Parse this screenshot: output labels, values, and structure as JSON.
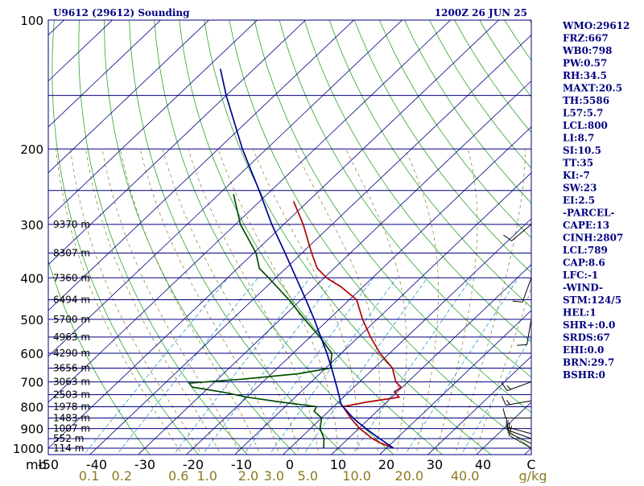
{
  "chart_data": {
    "type": "line",
    "title_left": "U9612 (29612) Sounding",
    "title_right": "1200Z 26 JUN 25",
    "y_unit_label": "mb",
    "mixing_unit_label": "g/kg",
    "pressure_ticks": [
      100,
      200,
      300,
      400,
      500,
      600,
      700,
      800,
      900,
      1000
    ],
    "pressure_lines": [
      150,
      200,
      250,
      300,
      350,
      400,
      450,
      500,
      550,
      600,
      650,
      700,
      750,
      800,
      850,
      900,
      950,
      1000
    ],
    "ylim": [
      1000,
      100
    ],
    "temp_ticks": [
      -50,
      -40,
      -30,
      -20,
      -10,
      0,
      10,
      20,
      30,
      40
    ],
    "temp_tick_labels": [
      "-50",
      "-40",
      "-30",
      "-20",
      "-10",
      "0",
      "10",
      "20",
      "30",
      "40"
    ],
    "last_tick_label": "C",
    "xlim": [
      -50,
      50
    ],
    "mixing_ratio_labels": [
      {
        "w": 0.1,
        "label": "0.1"
      },
      {
        "w": 0.2,
        "label": "0.2"
      },
      {
        "w": 0.6,
        "label": "0.6"
      },
      {
        "w": 1.0,
        "label": "1.0"
      },
      {
        "w": 2.0,
        "label": "2.0"
      },
      {
        "w": 3.0,
        "label": "3.0"
      },
      {
        "w": 5.0,
        "label": "5.0"
      },
      {
        "w": 10.0,
        "label": "10.0"
      },
      {
        "w": 20.0,
        "label": "20.0"
      },
      {
        "w": 40.0,
        "label": "40.0"
      }
    ],
    "height_labels": [
      {
        "p": 300,
        "label": "9370 m"
      },
      {
        "p": 350,
        "label": "8307 m"
      },
      {
        "p": 400,
        "label": "7360 m"
      },
      {
        "p": 450,
        "label": "6494 m"
      },
      {
        "p": 500,
        "label": "5700 m"
      },
      {
        "p": 550,
        "label": "4963 m"
      },
      {
        "p": 600,
        "label": "4290 m"
      },
      {
        "p": 650,
        "label": "3656 m"
      },
      {
        "p": 700,
        "label": "3063 m"
      },
      {
        "p": 750,
        "label": "2503 m"
      },
      {
        "p": 800,
        "label": "1978 m"
      },
      {
        "p": 850,
        "label": "1483 m"
      },
      {
        "p": 900,
        "label": "1007 m"
      },
      {
        "p": 950,
        "label": "552 m"
      },
      {
        "p": 1000,
        "label": "114 m"
      }
    ],
    "series": [
      {
        "style": "temperature",
        "color": "#b30000",
        "points": [
          {
            "p": 1000,
            "t": 21.5
          },
          {
            "p": 975,
            "t": 18.0
          },
          {
            "p": 950,
            "t": 15.0
          },
          {
            "p": 925,
            "t": 12.7
          },
          {
            "p": 900,
            "t": 10.2
          },
          {
            "p": 850,
            "t": 6.0
          },
          {
            "p": 800,
            "t": 2.0
          },
          {
            "p": 780,
            "t": 6.0
          },
          {
            "p": 760,
            "t": 11.5
          },
          {
            "p": 740,
            "t": 9.5
          },
          {
            "p": 720,
            "t": 9.7
          },
          {
            "p": 700,
            "t": 7.5
          },
          {
            "p": 650,
            "t": 3.8
          },
          {
            "p": 600,
            "t": -2.0
          },
          {
            "p": 550,
            "t": -7.5
          },
          {
            "p": 500,
            "t": -13.0
          },
          {
            "p": 450,
            "t": -18.5
          },
          {
            "p": 420,
            "t": -24.5
          },
          {
            "p": 400,
            "t": -29.5
          },
          {
            "p": 380,
            "t": -33.5
          },
          {
            "p": 350,
            "t": -38.0
          },
          {
            "p": 300,
            "t": -46.0
          },
          {
            "p": 265,
            "t": -53.0
          }
        ]
      },
      {
        "style": "dewpoint",
        "color": "#004d00",
        "points": [
          {
            "p": 1000,
            "t": 7.0
          },
          {
            "p": 950,
            "t": 5.0
          },
          {
            "p": 900,
            "t": 2.0
          },
          {
            "p": 850,
            "t": 0.0
          },
          {
            "p": 820,
            "t": -3.0
          },
          {
            "p": 800,
            "t": -3.5
          },
          {
            "p": 780,
            "t": -12.0
          },
          {
            "p": 760,
            "t": -20.0
          },
          {
            "p": 740,
            "t": -26.0
          },
          {
            "p": 720,
            "t": -33.5
          },
          {
            "p": 705,
            "t": -35.0
          },
          {
            "p": 690,
            "t": -25.0
          },
          {
            "p": 670,
            "t": -14.5
          },
          {
            "p": 650,
            "t": -9.0
          },
          {
            "p": 600,
            "t": -12.0
          },
          {
            "p": 550,
            "t": -18.0
          },
          {
            "p": 500,
            "t": -25.0
          },
          {
            "p": 450,
            "t": -32.5
          },
          {
            "p": 400,
            "t": -41.5
          },
          {
            "p": 380,
            "t": -45.5
          },
          {
            "p": 350,
            "t": -49.5
          },
          {
            "p": 300,
            "t": -59.0
          },
          {
            "p": 255,
            "t": -67.0
          }
        ]
      },
      {
        "style": "parcel",
        "color": "#000099",
        "points": [
          {
            "p": 1000,
            "t": 21.5
          },
          {
            "p": 950,
            "t": 16.5
          },
          {
            "p": 900,
            "t": 11.5
          },
          {
            "p": 850,
            "t": 6.5
          },
          {
            "p": 800,
            "t": 2.0
          },
          {
            "p": 789,
            "t": 1.0
          },
          {
            "p": 750,
            "t": -1.5
          },
          {
            "p": 700,
            "t": -5.0
          },
          {
            "p": 650,
            "t": -8.8
          },
          {
            "p": 600,
            "t": -13.0
          },
          {
            "p": 550,
            "t": -17.8
          },
          {
            "p": 500,
            "t": -23.0
          },
          {
            "p": 450,
            "t": -29.0
          },
          {
            "p": 400,
            "t": -35.8
          },
          {
            "p": 350,
            "t": -43.5
          },
          {
            "p": 300,
            "t": -52.5
          },
          {
            "p": 250,
            "t": -62.5
          },
          {
            "p": 200,
            "t": -75.0
          },
          {
            "p": 150,
            "t": -90.0
          },
          {
            "p": 130,
            "t": -97.0
          }
        ]
      }
    ],
    "wind_barbs": [
      {
        "p": 1000,
        "dir": 300,
        "spd": 10
      },
      {
        "p": 975,
        "dir": 295,
        "spd": 10
      },
      {
        "p": 950,
        "dir": 290,
        "spd": 10
      },
      {
        "p": 925,
        "dir": 285,
        "spd": 10
      },
      {
        "p": 850,
        "dir": 270,
        "spd": 10
      },
      {
        "p": 775,
        "dir": 260,
        "spd": 15
      },
      {
        "p": 700,
        "dir": 250,
        "spd": 15
      },
      {
        "p": 500,
        "dir": 190,
        "spd": 10
      },
      {
        "p": 400,
        "dir": 200,
        "spd": 10
      },
      {
        "p": 300,
        "dir": 230,
        "spd": 10
      }
    ],
    "indices": [
      "WMO:29612",
      "FRZ:667",
      "WB0:798",
      "PW:0.57",
      "RH:34.5",
      "MAXT:20.5",
      "TH:5586",
      "L57:5.7",
      "LCL:800",
      "LI:8.7",
      "SI:10.5",
      "TT:35",
      "KI:-7",
      "SW:23",
      "EI:2.5",
      "-PARCEL-",
      "CAPE:13",
      "CINH:2807",
      "LCL:789",
      "CAP:8.6",
      "LFC:-1",
      "-WIND-",
      "STM:124/5",
      "HEL:1",
      "SHR+:0.0",
      "SRDS:67",
      "EHI:0.0",
      "BRN:29.7",
      "BSHR:0"
    ],
    "colors": {
      "isobar": "#000080",
      "isotherm": "#000080",
      "dry_adiabat": "#2aa52a",
      "moist_adiabat": "#8a7a1e",
      "mixing_ratio": "#3399cc",
      "text": "#000080"
    }
  }
}
